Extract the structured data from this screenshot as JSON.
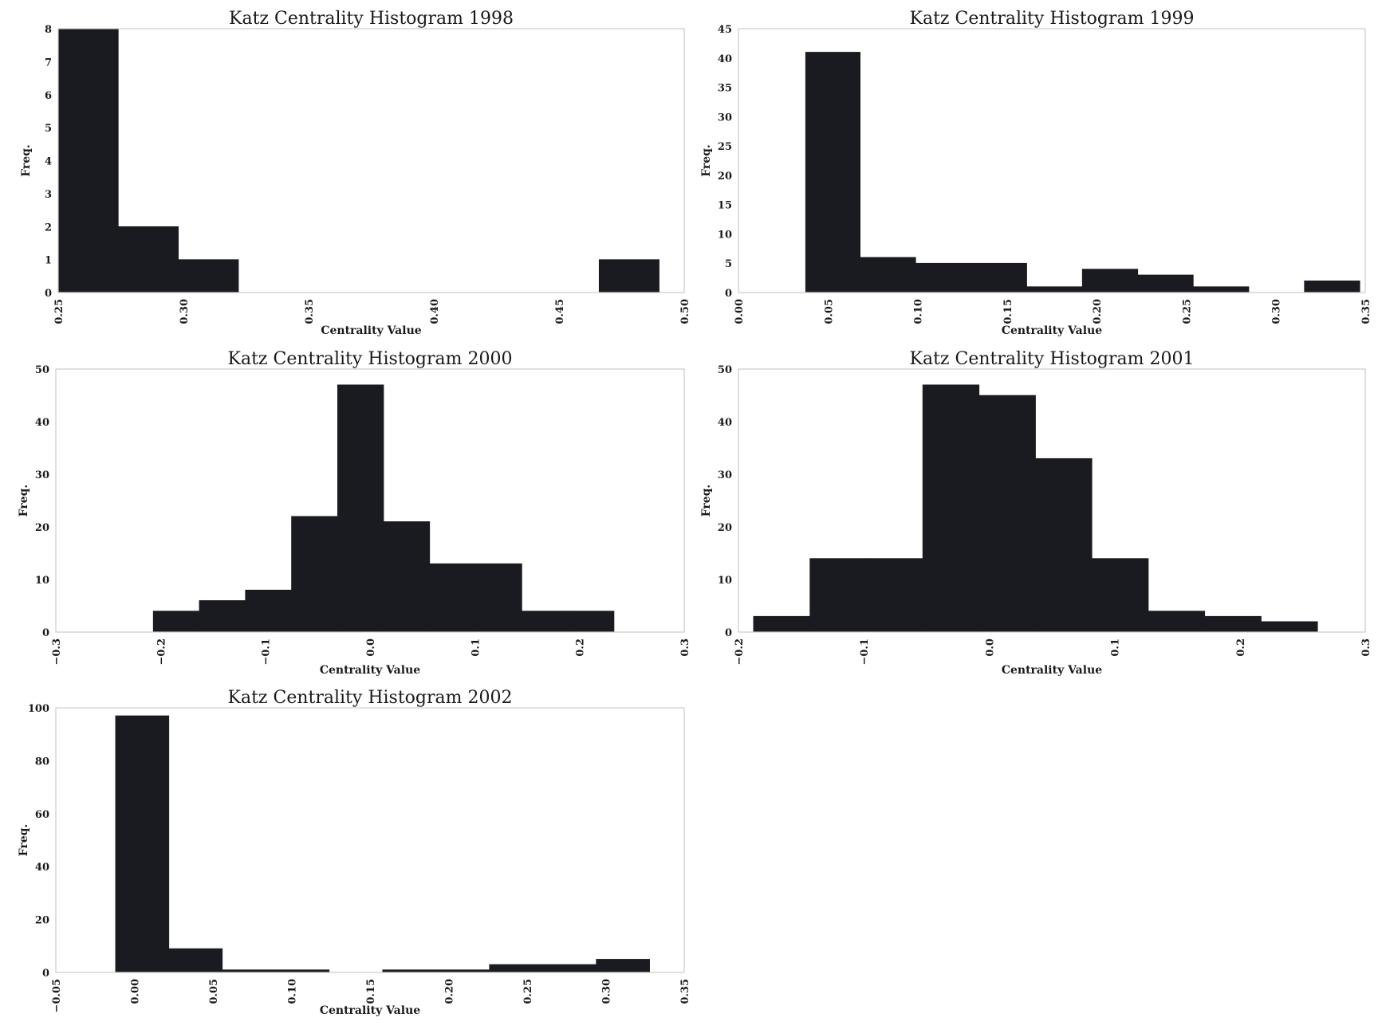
{
  "chart_data": [
    {
      "type": "bar",
      "title": "Katz Centrality Histogram 1998",
      "xlabel": "Centrality Value",
      "ylabel": "Freq.",
      "xlim": [
        0.25,
        0.5
      ],
      "ylim": [
        0,
        8
      ],
      "xticks": [
        "0.25",
        "0.30",
        "0.35",
        "0.40",
        "0.45",
        "0.50"
      ],
      "yticks": [
        "0",
        "1",
        "2",
        "3",
        "4",
        "5",
        "6",
        "7",
        "8"
      ],
      "bin_edges": [
        0.25,
        0.274,
        0.298,
        0.322,
        0.346,
        0.37,
        0.394,
        0.418,
        0.442,
        0.466,
        0.49
      ],
      "values": [
        8,
        2,
        1,
        0,
        0,
        0,
        0,
        0,
        0,
        1
      ],
      "grid": false,
      "bar_color": "#1a1b20"
    },
    {
      "type": "bar",
      "title": "Katz Centrality Histogram 1999",
      "xlabel": "Centrality Value",
      "ylabel": "Freq.",
      "xlim": [
        0.0,
        0.35
      ],
      "ylim": [
        0,
        45
      ],
      "xticks": [
        "0.00",
        "0.05",
        "0.10",
        "0.15",
        "0.20",
        "0.25",
        "0.30",
        "0.35"
      ],
      "yticks": [
        "0",
        "5",
        "10",
        "15",
        "20",
        "25",
        "30",
        "35",
        "40",
        "45"
      ],
      "bin_edges": [
        0.0375,
        0.068,
        0.099,
        0.13,
        0.161,
        0.192,
        0.223,
        0.254,
        0.285,
        0.316,
        0.347
      ],
      "values": [
        41,
        6,
        5,
        5,
        1,
        4,
        3,
        1,
        0,
        2
      ],
      "grid": false,
      "bar_color": "#1a1b20"
    },
    {
      "type": "bar",
      "title": "Katz Centrality Histogram 2000",
      "xlabel": "Centrality Value",
      "ylabel": "Freq.",
      "xlim": [
        -0.3,
        0.3
      ],
      "ylim": [
        0,
        50
      ],
      "xticks": [
        "−0.3",
        "−0.2",
        "−0.1",
        "0.0",
        "0.1",
        "0.2",
        "0.3"
      ],
      "yticks": [
        "0",
        "10",
        "20",
        "30",
        "40",
        "50"
      ],
      "bin_edges": [
        -0.207,
        -0.163,
        -0.119,
        -0.075,
        -0.031,
        0.013,
        0.057,
        0.101,
        0.145,
        0.189,
        0.233
      ],
      "values": [
        4,
        6,
        8,
        22,
        47,
        21,
        13,
        13,
        4,
        4
      ],
      "grid": false,
      "bar_color": "#1a1b20"
    },
    {
      "type": "bar",
      "title": "Katz Centrality Histogram 2001",
      "xlabel": "Centrality Value",
      "ylabel": "Freq.",
      "xlim": [
        -0.2,
        0.3
      ],
      "ylim": [
        0,
        50
      ],
      "xticks": [
        "−0.2",
        "−0.1",
        "0.0",
        "0.1",
        "0.2",
        "0.3"
      ],
      "yticks": [
        "0",
        "10",
        "20",
        "30",
        "40",
        "50"
      ],
      "bin_edges": [
        -0.188,
        -0.143,
        -0.098,
        -0.053,
        -0.008,
        0.037,
        0.082,
        0.127,
        0.172,
        0.217,
        0.262
      ],
      "values": [
        3,
        14,
        14,
        47,
        45,
        33,
        14,
        4,
        3,
        2
      ],
      "grid": false,
      "bar_color": "#1a1b20"
    },
    {
      "type": "bar",
      "title": "Katz Centrality Histogram 2002",
      "xlabel": "Centrality Value",
      "ylabel": "Freq.",
      "xlim": [
        -0.05,
        0.35
      ],
      "ylim": [
        0,
        100
      ],
      "xticks": [
        "−0.05",
        "0.00",
        "0.05",
        "0.10",
        "0.15",
        "0.20",
        "0.25",
        "0.30",
        "0.35"
      ],
      "yticks": [
        "0",
        "20",
        "40",
        "60",
        "80",
        "100"
      ],
      "bin_edges": [
        -0.012,
        0.022,
        0.056,
        0.09,
        0.124,
        0.158,
        0.192,
        0.226,
        0.26,
        0.294,
        0.328
      ],
      "values": [
        97,
        9,
        1,
        1,
        0,
        1,
        1,
        3,
        3,
        5
      ],
      "grid": false,
      "bar_color": "#1a1b20"
    }
  ]
}
